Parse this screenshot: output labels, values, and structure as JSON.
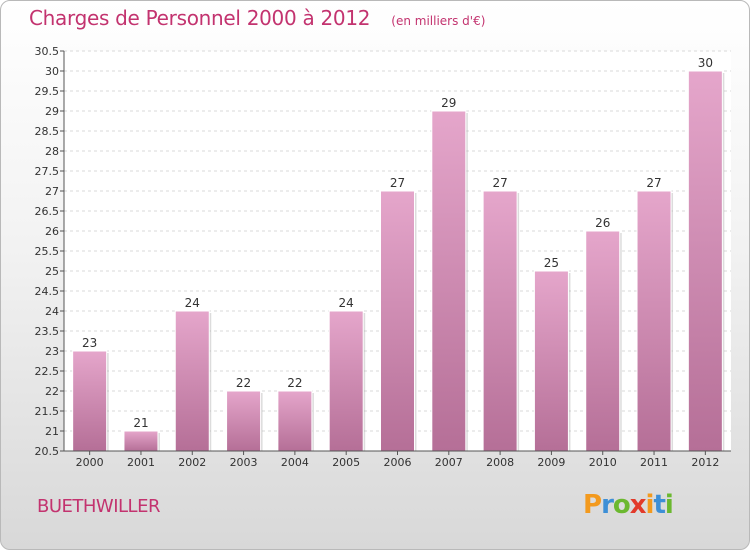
{
  "title": "Charges de Personnel 2000 à 2012",
  "subtitle": "(en milliers d'€)",
  "commune": "BUETHWILLER",
  "logo": {
    "letters": [
      "P",
      "r",
      "o",
      "x",
      "i",
      "t",
      "i"
    ]
  },
  "colors": {
    "title": "#c3336f",
    "bar_top": "#e5a6cb",
    "bar_bottom": "#b56f97",
    "axis": "#555555",
    "grid": "#dddddd"
  },
  "chart_data": {
    "type": "bar",
    "categories": [
      "2000",
      "2001",
      "2002",
      "2003",
      "2004",
      "2005",
      "2006",
      "2007",
      "2008",
      "2009",
      "2010",
      "2011",
      "2012"
    ],
    "values": [
      23,
      21,
      24,
      22,
      22,
      24,
      27,
      29,
      27,
      25,
      26,
      27,
      30
    ],
    "data_labels": [
      "23",
      "21",
      "24",
      "22",
      "22",
      "24",
      "27",
      "29",
      "27",
      "25",
      "26",
      "27",
      "30"
    ],
    "ylim": [
      20.5,
      30.5
    ],
    "yticks": [
      "20.5",
      "21",
      "21.5",
      "22",
      "22.5",
      "23",
      "23.5",
      "24",
      "24.5",
      "25",
      "25.5",
      "26",
      "26.5",
      "27",
      "27.5",
      "28",
      "28.5",
      "29",
      "29.5",
      "30",
      "30.5"
    ],
    "grid": "horizontal dashed",
    "legend": "none"
  }
}
